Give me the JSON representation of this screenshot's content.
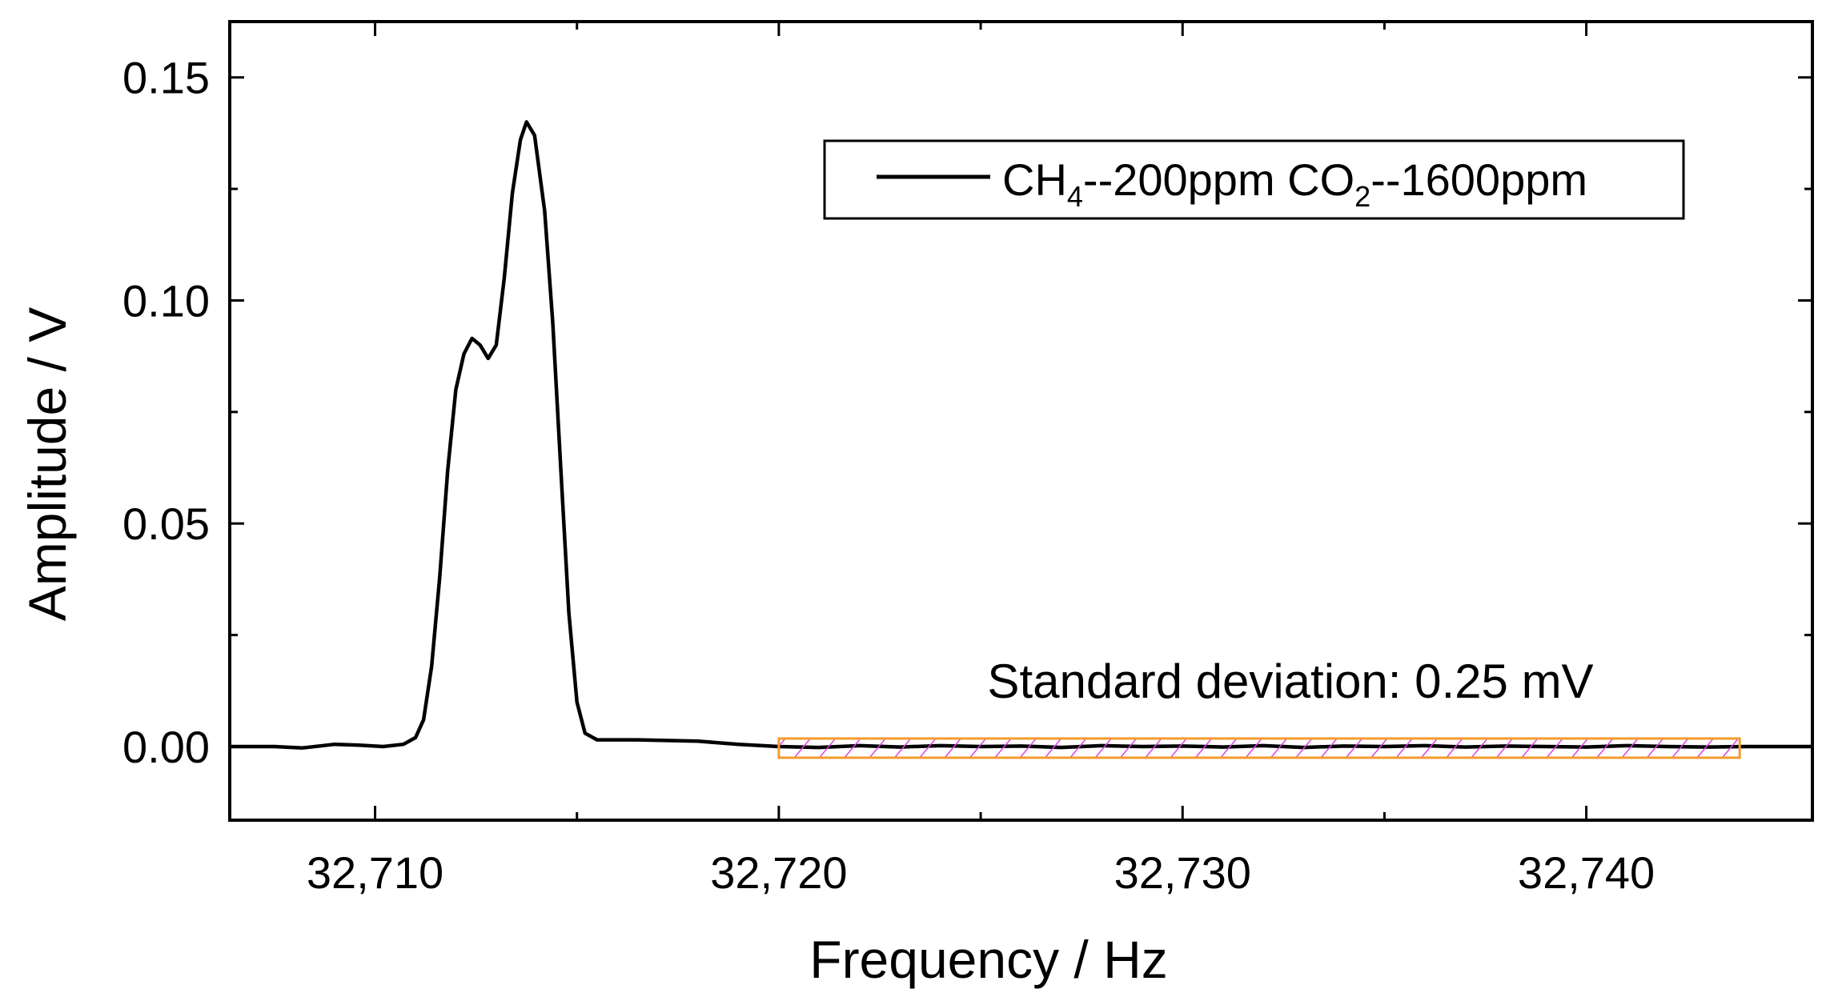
{
  "chart_data": {
    "type": "line",
    "xlabel": "Frequency / Hz",
    "ylabel": "Amplitude / V",
    "xlim": [
      32706.4,
      32745.6
    ],
    "ylim": [
      -0.0165,
      0.1625
    ],
    "x_ticks": [
      32710,
      32720,
      32730,
      32740
    ],
    "x_tick_labels": [
      "32,710",
      "32,720",
      "32,730",
      "32,740"
    ],
    "x_minor_ticks": [
      32715,
      32725,
      32735
    ],
    "y_ticks": [
      0.0,
      0.05,
      0.1,
      0.15
    ],
    "y_tick_labels": [
      "0.00",
      "0.05",
      "0.10",
      "0.15"
    ],
    "y_minor_ticks": [
      0.025,
      0.075,
      0.125
    ],
    "grid": false,
    "legend": {
      "position": "top-right",
      "parts": [
        "CH",
        "4",
        "--200ppm  CO",
        "2",
        "--1600ppm"
      ]
    },
    "annotation": {
      "text": "Standard deviation: 0.25 mV",
      "region": {
        "x_start": 32720,
        "x_end": 32743.8,
        "y_min": -0.0025,
        "y_max": 0.0018
      },
      "border_color": "#f39c2e",
      "hatch_color": "#e040e8"
    },
    "series": [
      {
        "name": "CH4--200ppm  CO2--1600ppm",
        "color": "#000000",
        "points": [
          [
            32706.4,
            0.0
          ],
          [
            32707.5,
            0.0
          ],
          [
            32708.2,
            -0.0003
          ],
          [
            32709.0,
            0.0005
          ],
          [
            32709.6,
            0.0003
          ],
          [
            32710.2,
            0.0
          ],
          [
            32710.7,
            0.0005
          ],
          [
            32711.0,
            0.002
          ],
          [
            32711.2,
            0.006
          ],
          [
            32711.4,
            0.018
          ],
          [
            32711.6,
            0.038
          ],
          [
            32711.8,
            0.062
          ],
          [
            32712.0,
            0.08
          ],
          [
            32712.2,
            0.088
          ],
          [
            32712.4,
            0.0915
          ],
          [
            32712.6,
            0.09
          ],
          [
            32712.8,
            0.087
          ],
          [
            32713.0,
            0.09
          ],
          [
            32713.2,
            0.105
          ],
          [
            32713.4,
            0.124
          ],
          [
            32713.6,
            0.136
          ],
          [
            32713.75,
            0.14
          ],
          [
            32713.95,
            0.137
          ],
          [
            32714.2,
            0.12
          ],
          [
            32714.4,
            0.095
          ],
          [
            32714.6,
            0.062
          ],
          [
            32714.8,
            0.03
          ],
          [
            32715.0,
            0.01
          ],
          [
            32715.2,
            0.003
          ],
          [
            32715.5,
            0.0015
          ],
          [
            32716.5,
            0.0015
          ],
          [
            32718.0,
            0.0012
          ],
          [
            32719.0,
            0.0005
          ],
          [
            32720.0,
            0.0
          ],
          [
            32721,
            -0.0002
          ],
          [
            32722,
            0.0002
          ],
          [
            32723,
            -0.0001
          ],
          [
            32724,
            0.0002
          ],
          [
            32725,
            0.0
          ],
          [
            32726,
            0.0001
          ],
          [
            32727,
            -0.0002
          ],
          [
            32728,
            0.0002
          ],
          [
            32729,
            0.0
          ],
          [
            32730,
            0.0001
          ],
          [
            32731,
            -0.0001
          ],
          [
            32732,
            0.0002
          ],
          [
            32733,
            -0.0002
          ],
          [
            32734,
            0.0001
          ],
          [
            32735,
            0.0
          ],
          [
            32736,
            0.0002
          ],
          [
            32737,
            -0.0001
          ],
          [
            32738,
            0.0001
          ],
          [
            32739,
            0.0
          ],
          [
            32740,
            -0.0001
          ],
          [
            32741,
            0.0002
          ],
          [
            32742,
            0.0
          ],
          [
            32743,
            -0.0001
          ],
          [
            32744,
            0.0
          ],
          [
            32745.6,
            0.0
          ]
        ]
      }
    ]
  }
}
